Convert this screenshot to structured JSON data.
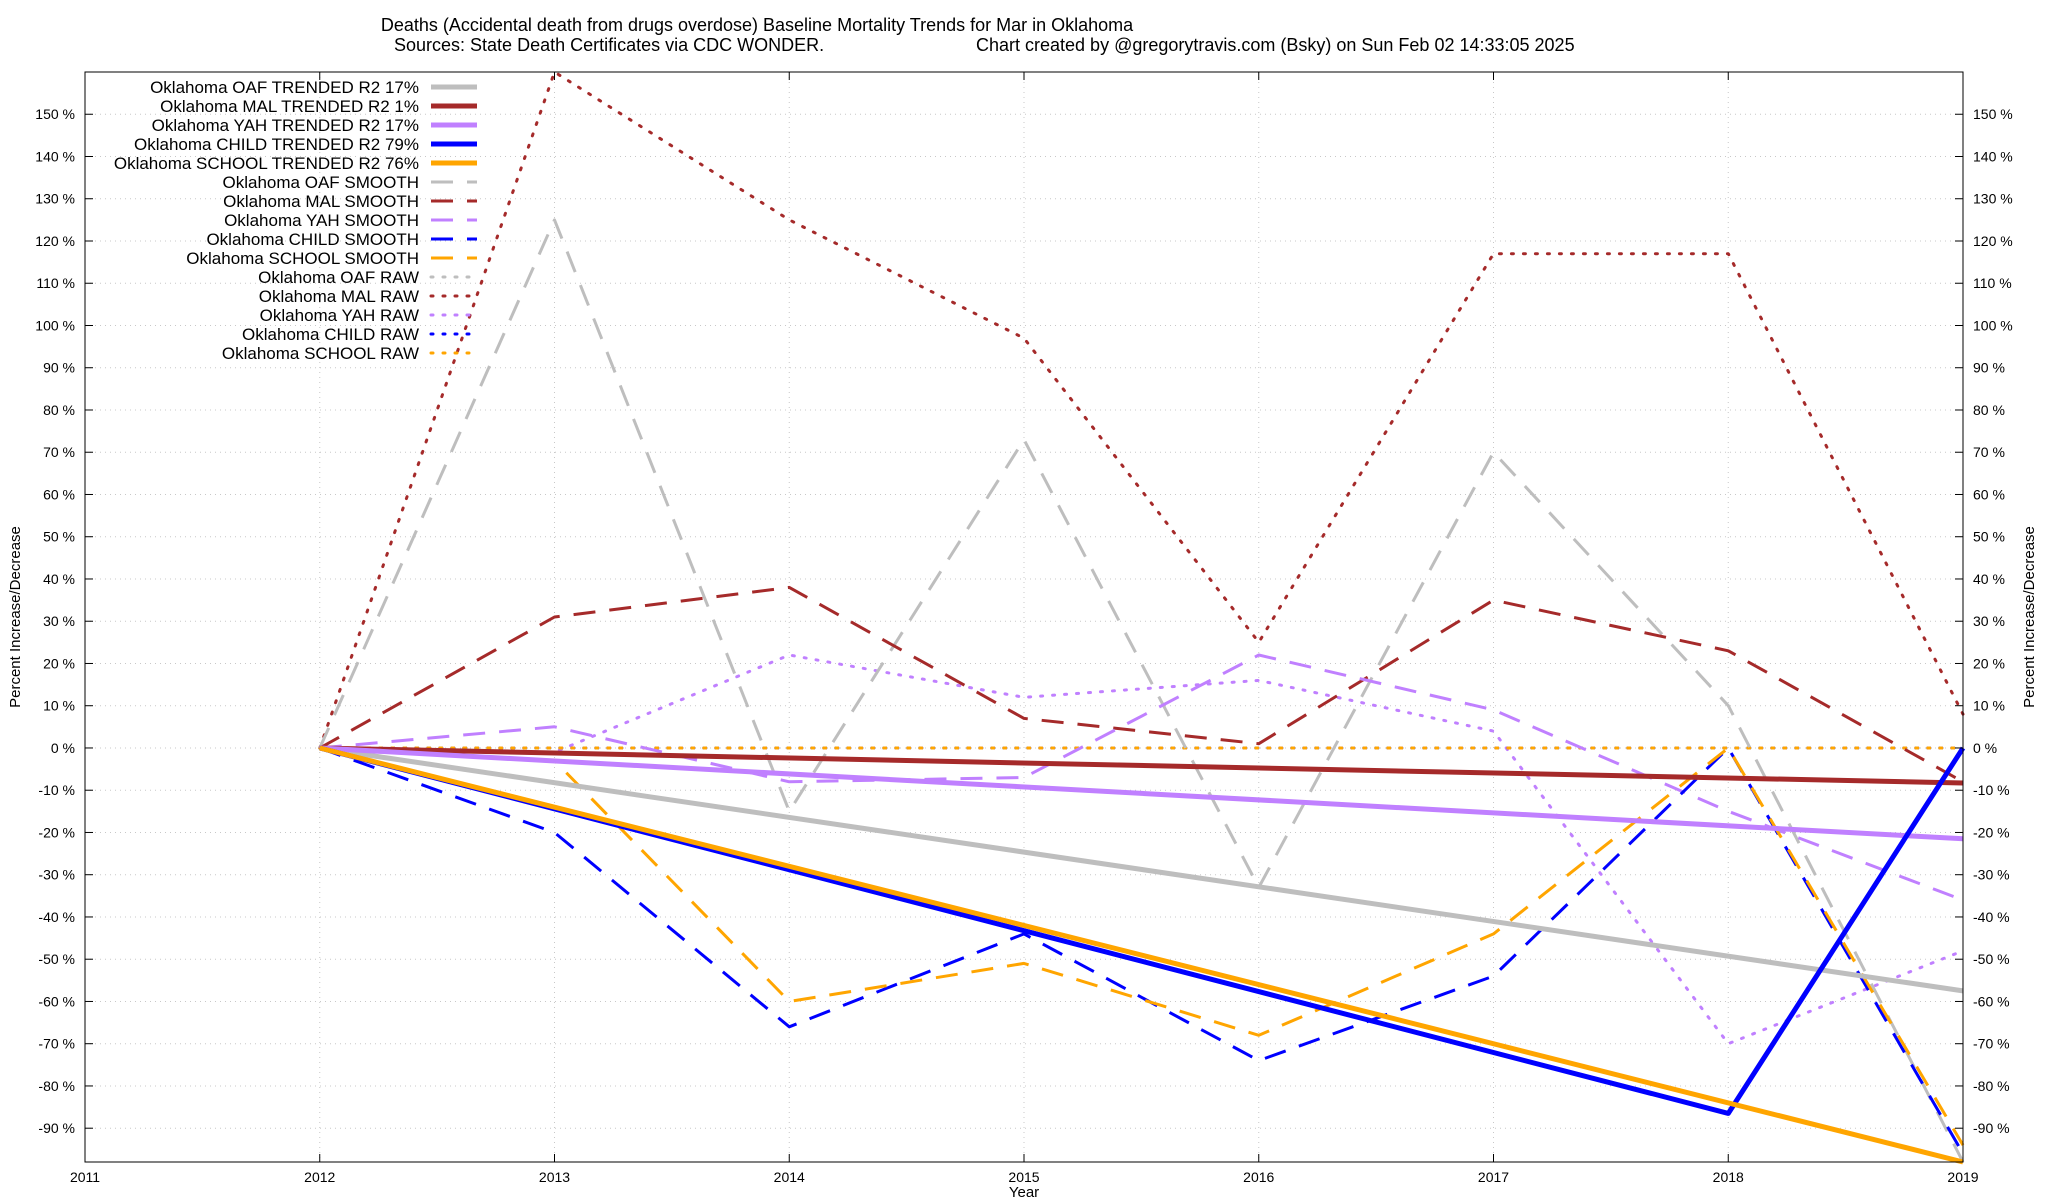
{
  "chart_data": {
    "type": "line",
    "title": "Deaths (Accidental death from drugs overdose)  Baseline Mortality Trends for Mar in Oklahoma",
    "subtitle_left": "Sources: State Death Certificates via CDC WONDER.",
    "subtitle_right": "Chart created by @gregorytravis.com (Bsky) on Sun Feb 02 14:33:05 2025",
    "xlabel": "Year",
    "ylabel": "Percent Increase/Decrease",
    "ylabel_right": "Percent Increase/Decrease",
    "xlim": [
      2011,
      2019
    ],
    "ylim": [
      -98,
      160
    ],
    "x_ticks": [
      "2011",
      "2012",
      "2013",
      "2014",
      "2015",
      "2016",
      "2017",
      "2018",
      "2019"
    ],
    "y_ticks": [
      150,
      140,
      130,
      120,
      110,
      100,
      90,
      80,
      70,
      60,
      50,
      40,
      30,
      20,
      10,
      0,
      -10,
      -20,
      -30,
      -40,
      -50,
      -60,
      -70,
      -80,
      -90
    ],
    "y_tick_suffix": " %",
    "grid": true,
    "legend_position": "top-left",
    "series": [
      {
        "name": "Oklahoma OAF TRENDED R2  17%",
        "style": "solid",
        "color": "#bebebe",
        "x": [
          2012,
          2019
        ],
        "y": [
          0,
          -57.5
        ]
      },
      {
        "name": "Oklahoma MAL TRENDED R2   1%",
        "style": "solid",
        "color": "#a52a2a",
        "x": [
          2012,
          2019
        ],
        "y": [
          0,
          -8.3
        ]
      },
      {
        "name": "Oklahoma YAH TRENDED R2  17%",
        "style": "solid",
        "color": "#c080ff",
        "x": [
          2012,
          2019
        ],
        "y": [
          0,
          -21.5
        ]
      },
      {
        "name": "Oklahoma CHILD TRENDED R2  79%",
        "style": "solid",
        "color": "#0000ff",
        "x": [
          2012,
          2018,
          2019
        ],
        "y": [
          0,
          -86.5,
          0
        ]
      },
      {
        "name": "Oklahoma SCHOOL TRENDED R2  76%",
        "style": "solid",
        "color": "#ffa500",
        "x": [
          2012,
          2019
        ],
        "y": [
          0,
          -98
        ]
      },
      {
        "name": "Oklahoma OAF SMOOTH",
        "style": "dashed",
        "color": "#bebebe",
        "x": [
          2012,
          2013,
          2014,
          2015,
          2016,
          2017,
          2018,
          2019
        ],
        "y": [
          0,
          125,
          -15,
          73,
          -33,
          70,
          10,
          -98
        ]
      },
      {
        "name": "Oklahoma MAL SMOOTH",
        "style": "dashed",
        "color": "#a52a2a",
        "x": [
          2012,
          2013,
          2014,
          2015,
          2016,
          2017,
          2018,
          2019
        ],
        "y": [
          0,
          31,
          38,
          7,
          1,
          35,
          23,
          -8
        ]
      },
      {
        "name": "Oklahoma YAH SMOOTH",
        "style": "dashed",
        "color": "#c080ff",
        "x": [
          2012,
          2013,
          2014,
          2015,
          2016,
          2017,
          2018,
          2019
        ],
        "y": [
          0,
          5,
          -8,
          -7,
          22,
          9,
          -15,
          -36
        ]
      },
      {
        "name": "Oklahoma CHILD SMOOTH",
        "style": "dashed",
        "color": "#0000ff",
        "x": [
          2012,
          2013,
          2014,
          2015,
          2016,
          2017,
          2018,
          2019
        ],
        "y": [
          0,
          -20,
          -66,
          -44,
          -74,
          -54,
          0,
          -96
        ]
      },
      {
        "name": "Oklahoma SCHOOL SMOOTH",
        "style": "dashed",
        "color": "#ffa500",
        "x": [
          2012,
          2013,
          2014,
          2015,
          2016,
          2017,
          2018,
          2019
        ],
        "y": [
          0,
          -3,
          -60,
          -51,
          -68,
          -44,
          0,
          -94
        ]
      },
      {
        "name": "Oklahoma OAF RAW",
        "style": "dotted",
        "color": "#bebebe",
        "x": [
          2012,
          2013,
          2014,
          2015,
          2016,
          2017,
          2018,
          2019
        ],
        "y": [
          0,
          0,
          0,
          0,
          0,
          0,
          0,
          0
        ]
      },
      {
        "name": "Oklahoma MAL RAW",
        "style": "dotted",
        "color": "#a52a2a",
        "x": [
          2012,
          2013,
          2014,
          2015,
          2016,
          2017,
          2018,
          2019
        ],
        "y": [
          0,
          160,
          125,
          97,
          25,
          117,
          117,
          8
        ]
      },
      {
        "name": "Oklahoma YAH RAW",
        "style": "dotted",
        "color": "#c080ff",
        "x": [
          2012,
          2013,
          2014,
          2015,
          2016,
          2017,
          2018,
          2019
        ],
        "y": [
          0,
          -1,
          22,
          12,
          16,
          4,
          -70,
          -48
        ]
      },
      {
        "name": "Oklahoma CHILD RAW",
        "style": "dotted",
        "color": "#0000ff",
        "x": [
          2012,
          2013,
          2014,
          2015,
          2016,
          2017,
          2018,
          2019
        ],
        "y": [
          0,
          0,
          0,
          0,
          0,
          0,
          0,
          0
        ]
      },
      {
        "name": "Oklahoma SCHOOL RAW",
        "style": "dotted",
        "color": "#ffa500",
        "x": [
          2012,
          2013,
          2014,
          2015,
          2016,
          2017,
          2018,
          2019
        ],
        "y": [
          0,
          0,
          0,
          0,
          0,
          0,
          0,
          0
        ]
      }
    ]
  }
}
